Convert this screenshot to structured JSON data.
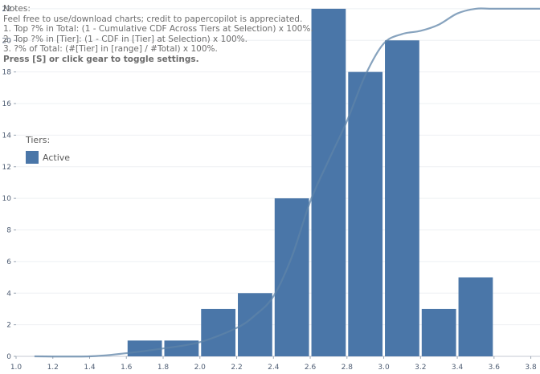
{
  "notes": {
    "heading": "Notes:",
    "lines": [
      "Feel free to use/download charts; credit to papercopilot is appreciated.",
      "1. Top ?% in Total: (1 - Cumulative CDF Across Tiers at Selection) x 100%.",
      "2. Top ?% in [Tier]: (1 - CDF in [Tier] at Selection) x 100%.",
      "3. ?% of Total: (#[Tier] in [range] / #Total) x 100%."
    ],
    "toggle_hint": "Press [S] or click gear to toggle settings."
  },
  "legend": {
    "title": "Tiers:",
    "items": [
      {
        "label": "Active",
        "color": "#4a76a8"
      }
    ]
  },
  "chart_data": {
    "type": "bar",
    "title": "",
    "xlabel": "",
    "ylabel": "",
    "xlim": [
      1.0,
      3.85
    ],
    "ylim": [
      0,
      22.3
    ],
    "bin_width": 0.2,
    "x_ticks": [
      "1.0",
      "1.2",
      "1.4",
      "1.6",
      "1.8",
      "2.0",
      "2.2",
      "2.4",
      "2.6",
      "2.8",
      "3.0",
      "3.2",
      "3.4",
      "3.6",
      "3.8"
    ],
    "y_ticks": [
      "0",
      "2",
      "4",
      "6",
      "8",
      "10",
      "12",
      "14",
      "16",
      "18",
      "20",
      "22"
    ],
    "grid": true,
    "legend_position": "left-middle",
    "series": [
      {
        "name": "Active",
        "color": "#4a76a8",
        "bins": [
          {
            "x0": 1.6,
            "x1": 1.8,
            "value": 1
          },
          {
            "x0": 1.8,
            "x1": 2.0,
            "value": 1
          },
          {
            "x0": 2.0,
            "x1": 2.2,
            "value": 3
          },
          {
            "x0": 2.2,
            "x1": 2.4,
            "value": 4
          },
          {
            "x0": 2.4,
            "x1": 2.6,
            "value": 10
          },
          {
            "x0": 2.6,
            "x1": 2.8,
            "value": 22
          },
          {
            "x0": 2.8,
            "x1": 3.0,
            "value": 18
          },
          {
            "x0": 3.0,
            "x1": 3.2,
            "value": 20
          },
          {
            "x0": 3.2,
            "x1": 3.4,
            "value": 3
          },
          {
            "x0": 3.4,
            "x1": 3.6,
            "value": 5
          }
        ]
      }
    ],
    "cdf_curve": {
      "color": "#5f84a8",
      "points": [
        [
          1.1,
          0.0
        ],
        [
          1.4,
          0.0
        ],
        [
          1.6,
          0.2
        ],
        [
          1.8,
          0.5
        ],
        [
          2.0,
          0.9
        ],
        [
          2.2,
          1.8
        ],
        [
          2.3,
          2.6
        ],
        [
          2.4,
          3.8
        ],
        [
          2.5,
          6.3
        ],
        [
          2.6,
          9.8
        ],
        [
          2.7,
          12.4
        ],
        [
          2.8,
          14.9
        ],
        [
          2.9,
          17.8
        ],
        [
          3.0,
          19.8
        ],
        [
          3.1,
          20.4
        ],
        [
          3.2,
          20.6
        ],
        [
          3.3,
          21.0
        ],
        [
          3.4,
          21.7
        ],
        [
          3.5,
          22.0
        ],
        [
          3.6,
          22.0
        ],
        [
          3.85,
          22.0
        ]
      ]
    }
  }
}
